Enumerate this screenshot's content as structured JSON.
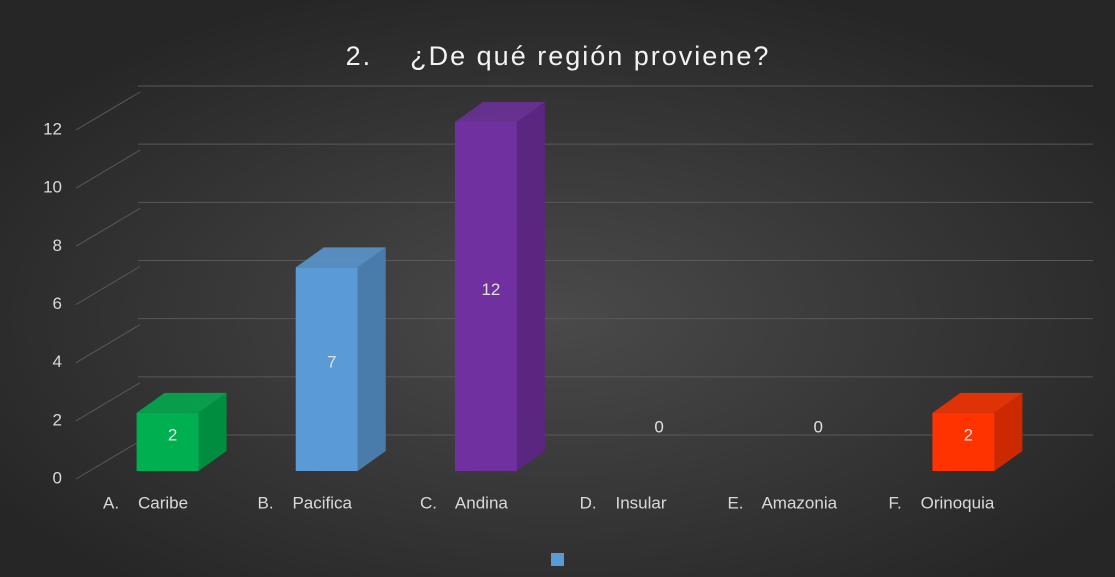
{
  "chart_data": {
    "type": "bar3d",
    "title": "2.    ¿De qué región proviene?",
    "categories": [
      "A.    Caribe",
      "B.    Pacifica",
      "C.    Andina",
      "D.    Insular",
      "E.    Amazonia",
      "F.    Orinoquia"
    ],
    "values": [
      2,
      7,
      12,
      0,
      0,
      2
    ],
    "colors": [
      "#00b050",
      "#5b9bd5",
      "#7030a0",
      null,
      null,
      "#ff3300"
    ],
    "legend_color": "#5b9bd5",
    "ylim": [
      0,
      12
    ],
    "yticks": [
      0,
      2,
      4,
      6,
      8,
      10,
      12
    ],
    "grid": true
  }
}
